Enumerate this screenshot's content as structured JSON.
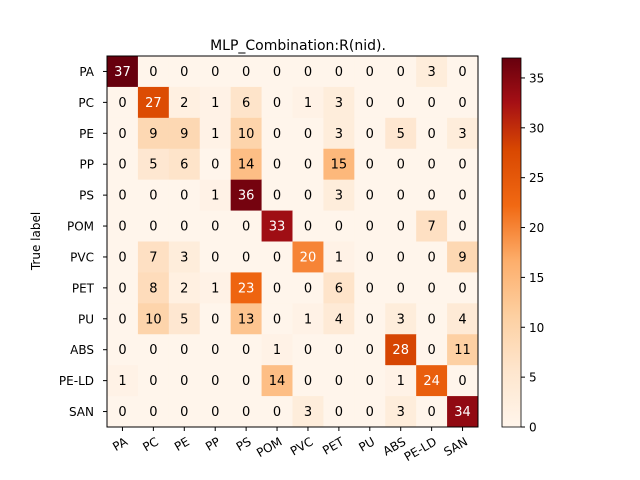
{
  "chart_data": {
    "type": "heatmap",
    "title": "MLP_Combination:R(nid).",
    "xlabel": "",
    "ylabel": "True label",
    "x_labels": [
      "PA",
      "PC",
      "PE",
      "PP",
      "PS",
      "POM",
      "PVC",
      "PET",
      "PU",
      "ABS",
      "PE-LD",
      "SAN"
    ],
    "y_labels": [
      "PA",
      "PC",
      "PE",
      "PP",
      "PS",
      "POM",
      "PVC",
      "PET",
      "PU",
      "ABS",
      "PE-LD",
      "SAN"
    ],
    "matrix": [
      [
        37,
        0,
        0,
        0,
        0,
        0,
        0,
        0,
        0,
        0,
        3,
        0
      ],
      [
        0,
        27,
        2,
        1,
        6,
        0,
        1,
        3,
        0,
        0,
        0,
        0
      ],
      [
        0,
        9,
        9,
        1,
        10,
        0,
        0,
        3,
        0,
        5,
        0,
        3
      ],
      [
        0,
        5,
        6,
        0,
        14,
        0,
        0,
        15,
        0,
        0,
        0,
        0
      ],
      [
        0,
        0,
        0,
        1,
        36,
        0,
        0,
        3,
        0,
        0,
        0,
        0
      ],
      [
        0,
        0,
        0,
        0,
        0,
        33,
        0,
        0,
        0,
        0,
        7,
        0
      ],
      [
        0,
        7,
        3,
        0,
        0,
        0,
        20,
        1,
        0,
        0,
        0,
        9
      ],
      [
        0,
        8,
        2,
        1,
        23,
        0,
        0,
        6,
        0,
        0,
        0,
        0
      ],
      [
        0,
        10,
        5,
        0,
        13,
        0,
        1,
        4,
        0,
        3,
        0,
        4
      ],
      [
        0,
        0,
        0,
        0,
        0,
        1,
        0,
        0,
        0,
        28,
        0,
        11
      ],
      [
        1,
        0,
        0,
        0,
        0,
        14,
        0,
        0,
        0,
        1,
        24,
        0
      ],
      [
        0,
        0,
        0,
        0,
        0,
        0,
        3,
        0,
        0,
        3,
        0,
        34
      ]
    ],
    "colorscale": "OrRd-like (white to dark red)",
    "vmin": 0,
    "vmax": 37,
    "colorbar_ticks": [
      0,
      5,
      10,
      15,
      20,
      25,
      30,
      35
    ],
    "x_tick_rotation": "30deg"
  }
}
